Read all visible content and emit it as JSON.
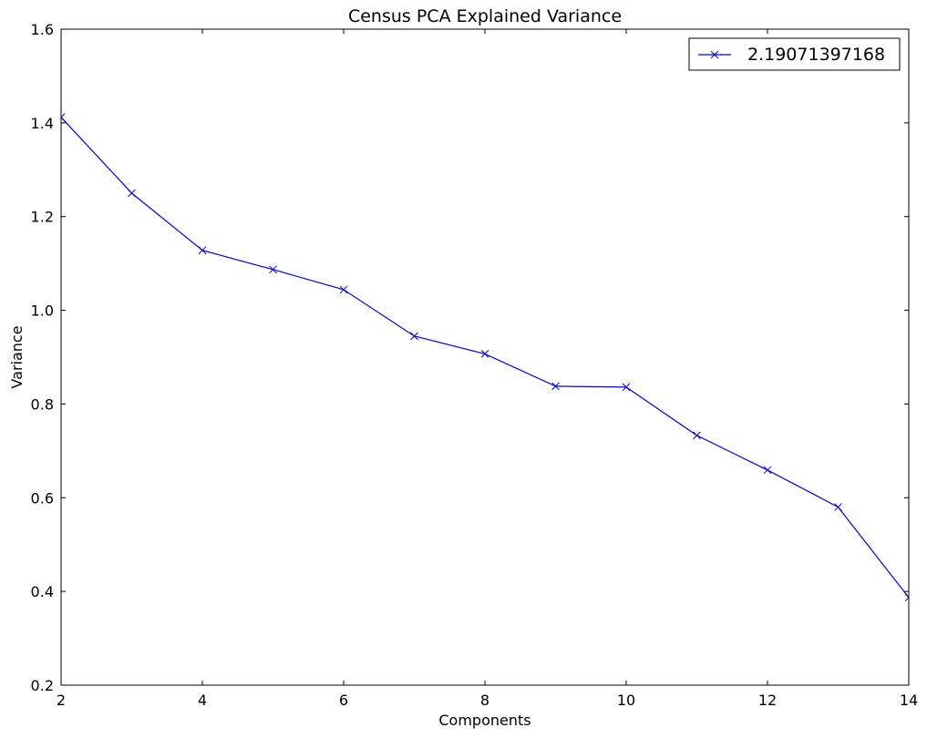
{
  "chart_data": {
    "type": "line",
    "title": "Census PCA Explained Variance",
    "xlabel": "Components",
    "ylabel": "Variance",
    "xlim": [
      2,
      14
    ],
    "ylim": [
      0.2,
      1.6
    ],
    "xticks": [
      "2",
      "4",
      "6",
      "8",
      "10",
      "12",
      "14"
    ],
    "yticks": [
      "0.2",
      "0.4",
      "0.6",
      "0.8",
      "1.0",
      "1.2",
      "1.4",
      "1.6"
    ],
    "grid": false,
    "legend_position": "top-right",
    "series": [
      {
        "name": "2.19071397168",
        "color": "#0000ff",
        "marker": "x",
        "x": [
          2,
          3,
          4,
          5,
          6,
          7,
          8,
          9,
          10,
          11,
          12,
          13,
          14
        ],
        "y": [
          1.412,
          1.25,
          1.128,
          1.087,
          1.044,
          0.945,
          0.907,
          0.838,
          0.836,
          0.733,
          0.659,
          0.58,
          0.387
        ]
      }
    ]
  }
}
